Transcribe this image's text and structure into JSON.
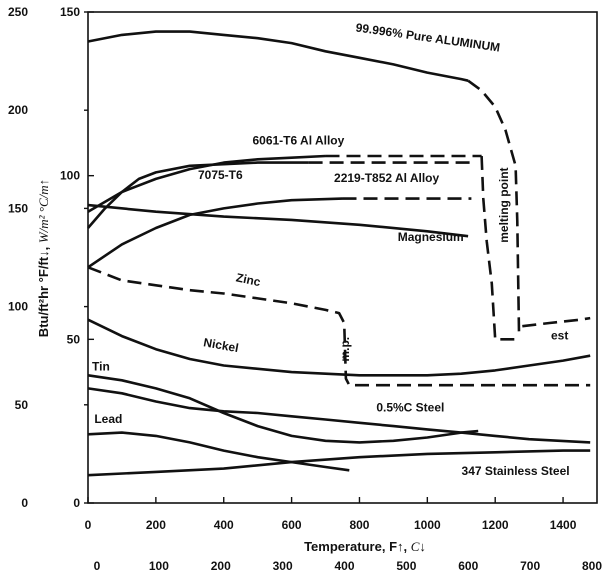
{
  "chart_data": {
    "type": "line",
    "title": "",
    "xlabel": {
      "text": "Temperature, F",
      "arrow": "↑",
      "sep": ", ",
      "unit": "C",
      "unit_arrow": "↓"
    },
    "ylabel": {
      "text": "Btu/ft²hr °F/ft",
      "arrow": "↓",
      "sep": ", ",
      "unit": "W/m² °C/m",
      "unit_arrow": "↑"
    },
    "x_primary": {
      "unit": "F",
      "range": [
        0,
        1500
      ],
      "ticks": [
        0,
        200,
        400,
        600,
        800,
        1000,
        1200,
        1400
      ]
    },
    "x_secondary": {
      "unit": "C",
      "ticks": [
        0,
        100,
        200,
        300,
        400,
        500,
        600,
        700,
        800
      ]
    },
    "y_primary": {
      "unit": "W/m °C",
      "range": [
        0,
        150
      ],
      "ticks": [
        0,
        50,
        100,
        150
      ]
    },
    "y_secondary": {
      "unit": "Btu/ft hr F",
      "range": [
        0,
        250
      ],
      "ticks": [
        0,
        50,
        100,
        150,
        200,
        250
      ]
    },
    "series": [
      {
        "name": "99.996% Pure ALUMINUM",
        "segments": [
          {
            "style": "solid",
            "points": [
              [
                0,
                141
              ],
              [
                100,
                143
              ],
              [
                200,
                144
              ],
              [
                300,
                144
              ],
              [
                400,
                143
              ],
              [
                500,
                142
              ],
              [
                600,
                140.5
              ],
              [
                700,
                138
              ],
              [
                800,
                136
              ],
              [
                900,
                134
              ],
              [
                1000,
                131.5
              ],
              [
                1100,
                129.5
              ],
              [
                1120,
                129
              ]
            ]
          },
          {
            "style": "dashed",
            "points": [
              [
                1120,
                129
              ],
              [
                1160,
                126
              ],
              [
                1200,
                121
              ],
              [
                1230,
                114
              ],
              [
                1260,
                103
              ],
              [
                1265,
                86
              ],
              [
                1270,
                52
              ]
            ]
          }
        ]
      },
      {
        "name": "6061-T6 Al Alloy",
        "segments": [
          {
            "style": "solid",
            "points": [
              [
                0,
                89
              ],
              [
                100,
                95
              ],
              [
                200,
                99
              ],
              [
                300,
                102
              ],
              [
                400,
                104
              ],
              [
                500,
                105
              ],
              [
                600,
                105.5
              ],
              [
                700,
                106
              ]
            ]
          },
          {
            "style": "dashed",
            "points": [
              [
                700,
                106
              ],
              [
                1160,
                106
              ]
            ]
          }
        ]
      },
      {
        "name": "7075-T6",
        "segments": [
          {
            "style": "solid",
            "points": [
              [
                0,
                84
              ],
              [
                50,
                90
              ],
              [
                100,
                95
              ],
              [
                150,
                99
              ],
              [
                200,
                101
              ],
              [
                300,
                103
              ],
              [
                400,
                103.5
              ],
              [
                500,
                104
              ],
              [
                650,
                104
              ]
            ]
          },
          {
            "style": "dashed",
            "points": [
              [
                650,
                104
              ],
              [
                1140,
                104
              ]
            ]
          }
        ]
      },
      {
        "name": "2219-T852 Al Alloy",
        "segments": [
          {
            "style": "solid",
            "points": [
              [
                0,
                72
              ],
              [
                100,
                79
              ],
              [
                200,
                84
              ],
              [
                300,
                88
              ],
              [
                400,
                90
              ],
              [
                500,
                91.5
              ],
              [
                600,
                92.5
              ],
              [
                750,
                93
              ]
            ]
          },
          {
            "style": "dashed",
            "points": [
              [
                750,
                93
              ],
              [
                1130,
                93
              ]
            ]
          }
        ]
      },
      {
        "name": "Magnesium",
        "segments": [
          {
            "style": "solid",
            "points": [
              [
                0,
                91
              ],
              [
                200,
                89
              ],
              [
                400,
                87.5
              ],
              [
                600,
                86.5
              ],
              [
                800,
                85
              ],
              [
                1000,
                83
              ],
              [
                1120,
                81.5
              ]
            ]
          }
        ]
      },
      {
        "name": "melting point",
        "segments": [
          {
            "style": "dashed",
            "points": [
              [
                1160,
                106
              ],
              [
                1165,
                93
              ],
              [
                1175,
                80
              ],
              [
                1190,
                67
              ],
              [
                1200,
                50
              ],
              [
                1260,
                50
              ]
            ]
          }
        ]
      },
      {
        "name": "est",
        "segments": [
          {
            "style": "dashed",
            "points": [
              [
                1280,
                54
              ],
              [
                1360,
                55
              ],
              [
                1450,
                56
              ],
              [
                1480,
                56.5
              ]
            ]
          }
        ]
      },
      {
        "name": "Zinc",
        "segments": [
          {
            "style": "dashed",
            "points": [
              [
                0,
                72
              ],
              [
                100,
                68
              ],
              [
                200,
                66.5
              ],
              [
                300,
                65
              ],
              [
                400,
                64
              ],
              [
                500,
                62.5
              ],
              [
                600,
                61
              ],
              [
                700,
                59
              ],
              [
                740,
                58
              ],
              [
                755,
                55
              ],
              [
                760,
                38
              ],
              [
                770,
                36
              ],
              [
                1480,
                36
              ]
            ]
          }
        ]
      },
      {
        "name": "Nickel",
        "segments": [
          {
            "style": "solid",
            "points": [
              [
                0,
                56
              ],
              [
                100,
                51
              ],
              [
                200,
                47
              ],
              [
                300,
                44
              ],
              [
                400,
                42
              ],
              [
                600,
                40
              ],
              [
                800,
                39
              ],
              [
                1000,
                39
              ],
              [
                1100,
                39.5
              ],
              [
                1200,
                40.5
              ],
              [
                1300,
                42
              ],
              [
                1400,
                43.5
              ],
              [
                1480,
                45
              ]
            ]
          }
        ]
      },
      {
        "name": "Tin",
        "segments": [
          {
            "style": "solid",
            "points": [
              [
                0,
                39
              ],
              [
                100,
                37.5
              ],
              [
                200,
                35
              ],
              [
                300,
                32
              ],
              [
                400,
                27.5
              ],
              [
                500,
                23.5
              ],
              [
                600,
                20.5
              ],
              [
                700,
                19
              ],
              [
                800,
                18.5
              ],
              [
                900,
                19
              ],
              [
                1000,
                20
              ],
              [
                1100,
                21.5
              ],
              [
                1150,
                22
              ]
            ]
          }
        ]
      },
      {
        "name": "0.5%C Steel",
        "segments": [
          {
            "style": "solid",
            "points": [
              [
                0,
                35
              ],
              [
                100,
                33.5
              ],
              [
                200,
                31
              ],
              [
                300,
                29
              ],
              [
                400,
                28
              ],
              [
                500,
                27.5
              ],
              [
                600,
                26.5
              ],
              [
                700,
                25.5
              ],
              [
                800,
                24.5
              ],
              [
                900,
                23.5
              ],
              [
                1000,
                22.5
              ],
              [
                1100,
                21.5
              ],
              [
                1200,
                20.5
              ],
              [
                1300,
                19.5
              ],
              [
                1480,
                18.5
              ]
            ]
          }
        ]
      },
      {
        "name": "Lead",
        "segments": [
          {
            "style": "solid",
            "points": [
              [
                0,
                21
              ],
              [
                100,
                21.5
              ],
              [
                200,
                20.5
              ],
              [
                300,
                18.5
              ],
              [
                400,
                16
              ],
              [
                500,
                14
              ],
              [
                600,
                12.5
              ],
              [
                700,
                11
              ],
              [
                770,
                10
              ]
            ]
          }
        ]
      },
      {
        "name": "347 Stainless Steel",
        "segments": [
          {
            "style": "solid",
            "points": [
              [
                0,
                8.5
              ],
              [
                200,
                9.5
              ],
              [
                400,
                10.5
              ],
              [
                600,
                12.5
              ],
              [
                800,
                14
              ],
              [
                1000,
                15
              ],
              [
                1200,
                15.5
              ],
              [
                1400,
                16
              ],
              [
                1480,
                16
              ]
            ]
          }
        ]
      }
    ],
    "annotations": [
      {
        "text": "99.996% Pure ALUMINUM",
        "at": [
          1000,
          141
        ],
        "rotate": 8
      },
      {
        "text": "6061-T6 Al Alloy",
        "at": [
          620,
          109.5
        ],
        "rotate": 0
      },
      {
        "text": "7075-T6",
        "at": [
          390,
          99
        ],
        "rotate": 0
      },
      {
        "text": "2219-T852 Al Alloy",
        "at": [
          880,
          98
        ],
        "rotate": 0
      },
      {
        "text": "melting point",
        "at": [
          1238,
          91
        ],
        "rotate": -90
      },
      {
        "text": "Magnesium",
        "at": [
          1010,
          80
        ],
        "rotate": 0
      },
      {
        "text": "Zinc",
        "at": [
          470,
          67
        ],
        "rotate": 12
      },
      {
        "text": "m.p.",
        "at": [
          770,
          47
        ],
        "rotate": -90
      },
      {
        "text": "est",
        "at": [
          1390,
          50
        ],
        "rotate": 0
      },
      {
        "text": "Nickel",
        "at": [
          390,
          47
        ],
        "rotate": 10
      },
      {
        "text": "Tin",
        "at": [
          38,
          40.5
        ],
        "rotate": 0
      },
      {
        "text": "0.5%C Steel",
        "at": [
          950,
          28
        ],
        "rotate": 0
      },
      {
        "text": "Lead",
        "at": [
          60,
          24.5
        ],
        "rotate": 0
      },
      {
        "text": "347 Stainless Steel",
        "at": [
          1260,
          8.5
        ],
        "rotate": 0
      }
    ],
    "grid": false,
    "legend": "none"
  }
}
